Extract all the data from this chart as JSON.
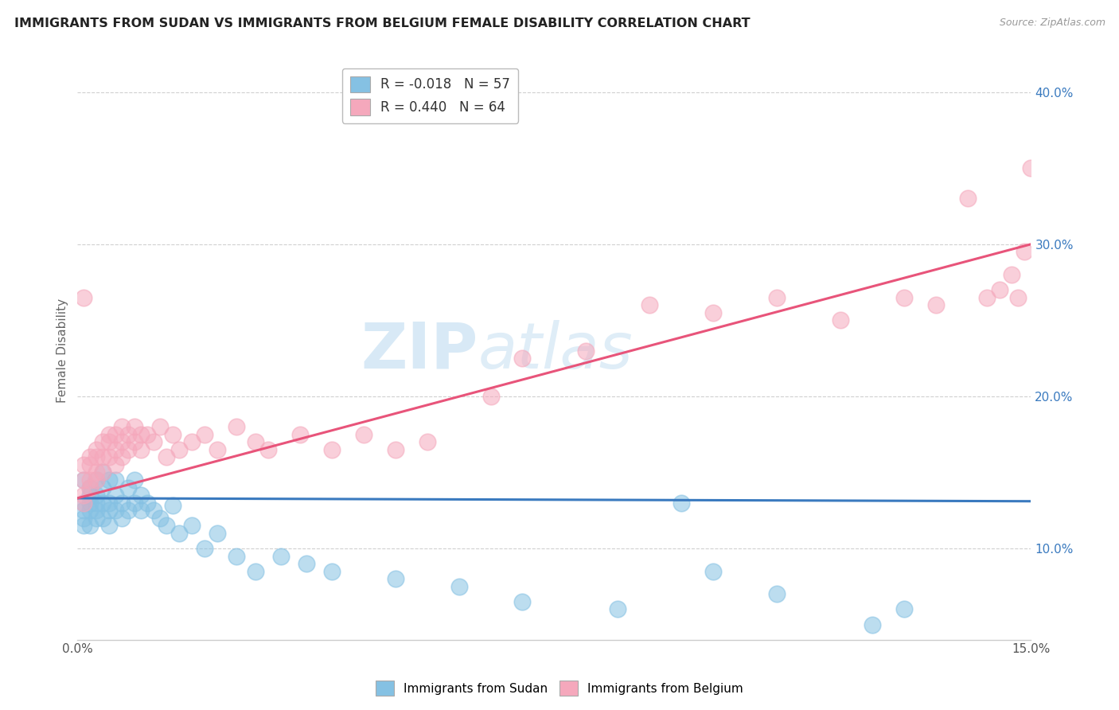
{
  "title": "IMMIGRANTS FROM SUDAN VS IMMIGRANTS FROM BELGIUM FEMALE DISABILITY CORRELATION CHART",
  "source": "Source: ZipAtlas.com",
  "ylabel": "Female Disability",
  "xlim": [
    0.0,
    0.15
  ],
  "ylim": [
    0.04,
    0.42
  ],
  "yticks": [
    0.1,
    0.2,
    0.3,
    0.4
  ],
  "ytick_labels": [
    "10.0%",
    "20.0%",
    "30.0%",
    "40.0%"
  ],
  "sudan_R": -0.018,
  "sudan_N": 57,
  "belgium_R": 0.44,
  "belgium_N": 64,
  "sudan_color": "#85c1e3",
  "belgium_color": "#f5a8bc",
  "sudan_line_color": "#3a7abf",
  "belgium_line_color": "#e8547a",
  "background_color": "#ffffff",
  "grid_color": "#d0d0d0",
  "sudan_x": [
    0.001,
    0.001,
    0.001,
    0.001,
    0.001,
    0.002,
    0.002,
    0.002,
    0.002,
    0.002,
    0.003,
    0.003,
    0.003,
    0.003,
    0.003,
    0.004,
    0.004,
    0.004,
    0.004,
    0.005,
    0.005,
    0.005,
    0.005,
    0.006,
    0.006,
    0.006,
    0.007,
    0.007,
    0.008,
    0.008,
    0.009,
    0.009,
    0.01,
    0.01,
    0.011,
    0.012,
    0.013,
    0.014,
    0.015,
    0.016,
    0.018,
    0.02,
    0.022,
    0.025,
    0.028,
    0.032,
    0.036,
    0.04,
    0.05,
    0.06,
    0.07,
    0.085,
    0.095,
    0.1,
    0.11,
    0.125,
    0.13
  ],
  "sudan_y": [
    0.145,
    0.13,
    0.12,
    0.115,
    0.125,
    0.14,
    0.135,
    0.125,
    0.13,
    0.115,
    0.145,
    0.13,
    0.12,
    0.135,
    0.125,
    0.15,
    0.13,
    0.12,
    0.14,
    0.145,
    0.125,
    0.13,
    0.115,
    0.135,
    0.125,
    0.145,
    0.13,
    0.12,
    0.14,
    0.125,
    0.13,
    0.145,
    0.125,
    0.135,
    0.13,
    0.125,
    0.12,
    0.115,
    0.128,
    0.11,
    0.115,
    0.1,
    0.11,
    0.095,
    0.085,
    0.095,
    0.09,
    0.085,
    0.08,
    0.075,
    0.065,
    0.06,
    0.13,
    0.085,
    0.07,
    0.05,
    0.06
  ],
  "belgium_x": [
    0.001,
    0.001,
    0.001,
    0.001,
    0.001,
    0.002,
    0.002,
    0.002,
    0.002,
    0.003,
    0.003,
    0.003,
    0.003,
    0.004,
    0.004,
    0.004,
    0.005,
    0.005,
    0.005,
    0.006,
    0.006,
    0.006,
    0.007,
    0.007,
    0.007,
    0.008,
    0.008,
    0.009,
    0.009,
    0.01,
    0.01,
    0.011,
    0.012,
    0.013,
    0.014,
    0.015,
    0.016,
    0.018,
    0.02,
    0.022,
    0.025,
    0.028,
    0.03,
    0.035,
    0.04,
    0.045,
    0.05,
    0.055,
    0.065,
    0.07,
    0.08,
    0.09,
    0.1,
    0.11,
    0.12,
    0.13,
    0.135,
    0.14,
    0.143,
    0.145,
    0.147,
    0.148,
    0.149,
    0.15
  ],
  "belgium_y": [
    0.265,
    0.145,
    0.155,
    0.13,
    0.135,
    0.16,
    0.145,
    0.155,
    0.14,
    0.165,
    0.15,
    0.16,
    0.145,
    0.17,
    0.16,
    0.15,
    0.175,
    0.16,
    0.17,
    0.165,
    0.175,
    0.155,
    0.17,
    0.18,
    0.16,
    0.175,
    0.165,
    0.18,
    0.17,
    0.175,
    0.165,
    0.175,
    0.17,
    0.18,
    0.16,
    0.175,
    0.165,
    0.17,
    0.175,
    0.165,
    0.18,
    0.17,
    0.165,
    0.175,
    0.165,
    0.175,
    0.165,
    0.17,
    0.2,
    0.225,
    0.23,
    0.26,
    0.255,
    0.265,
    0.25,
    0.265,
    0.26,
    0.33,
    0.265,
    0.27,
    0.28,
    0.265,
    0.295,
    0.35
  ],
  "sudan_line_y0": 0.133,
  "sudan_line_y1": 0.131,
  "belgium_line_y0": 0.133,
  "belgium_line_y1": 0.3
}
